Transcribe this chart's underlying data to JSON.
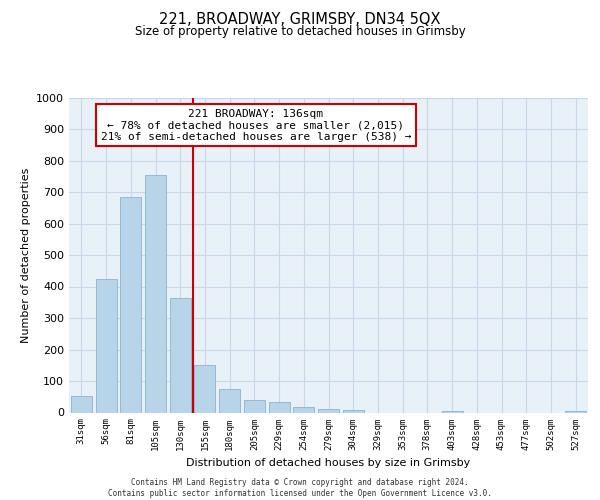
{
  "title": "221, BROADWAY, GRIMSBY, DN34 5QX",
  "subtitle": "Size of property relative to detached houses in Grimsby",
  "xlabel": "Distribution of detached houses by size in Grimsby",
  "ylabel": "Number of detached properties",
  "bar_labels": [
    "31sqm",
    "56sqm",
    "81sqm",
    "105sqm",
    "130sqm",
    "155sqm",
    "180sqm",
    "205sqm",
    "229sqm",
    "254sqm",
    "279sqm",
    "304sqm",
    "329sqm",
    "353sqm",
    "378sqm",
    "403sqm",
    "428sqm",
    "453sqm",
    "477sqm",
    "502sqm",
    "527sqm"
  ],
  "bar_values": [
    52,
    425,
    685,
    755,
    362,
    152,
    75,
    40,
    32,
    18,
    10,
    8,
    0,
    0,
    0,
    5,
    0,
    0,
    0,
    0,
    5
  ],
  "bar_color": "#b8d4e8",
  "bar_edge_color": "#8ab4d4",
  "vline_color": "#cc0000",
  "ylim": [
    0,
    1000
  ],
  "yticks": [
    0,
    100,
    200,
    300,
    400,
    500,
    600,
    700,
    800,
    900,
    1000
  ],
  "annotation_title": "221 BROADWAY: 136sqm",
  "annotation_line1": "← 78% of detached houses are smaller (2,015)",
  "annotation_line2": "21% of semi-detached houses are larger (538) →",
  "box_facecolor": "#ffffff",
  "box_edgecolor": "#cc0000",
  "footer_line1": "Contains HM Land Registry data © Crown copyright and database right 2024.",
  "footer_line2": "Contains public sector information licensed under the Open Government Licence v3.0.",
  "grid_color": "#c8d8e8",
  "background_color": "#e8f0f8",
  "vline_bar_index": 4
}
